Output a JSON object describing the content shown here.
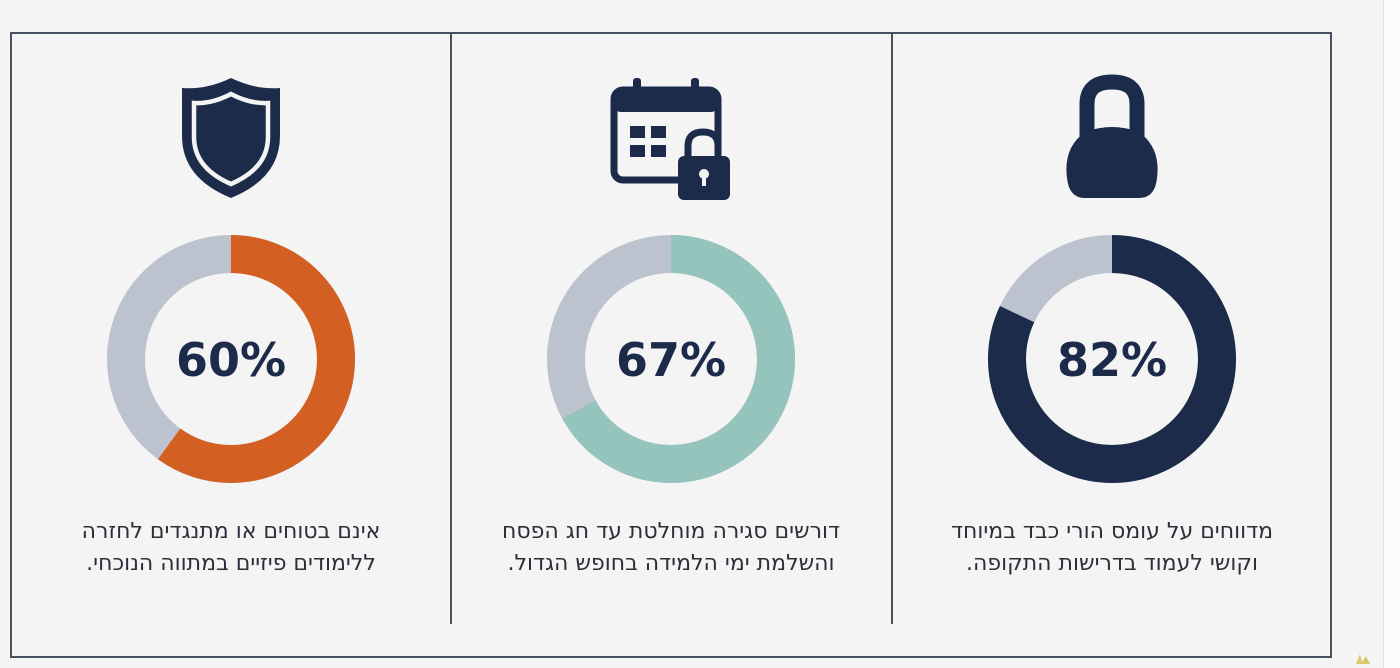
{
  "colors": {
    "track": "#bcc3cf",
    "navy": "#1c2b4a",
    "teal": "#95c4bc",
    "orange": "#d35f23"
  },
  "chart_data": [
    {
      "type": "pie",
      "variant": "donut",
      "value": 82,
      "label": "82%",
      "color": "#1c2b4a",
      "icon": "kettlebell-icon",
      "caption": "מדווחים על עומס הורי כבד במיוחד וקושי לעמוד בדרישות התקופה."
    },
    {
      "type": "pie",
      "variant": "donut",
      "value": 67,
      "label": "67%",
      "color": "#95c4bc",
      "icon": "calendar-lock-icon",
      "caption": "דורשים סגירה מוחלטת עד חג הפסח והשלמת ימי הלמידה בחופש הגדול."
    },
    {
      "type": "pie",
      "variant": "donut",
      "value": 60,
      "label": "60%",
      "color": "#d35f23",
      "icon": "shield-icon",
      "caption": "אינם בטוחים או מתנגדים לחזרה ללימודים פיזיים במתווה הנוכחי."
    }
  ]
}
